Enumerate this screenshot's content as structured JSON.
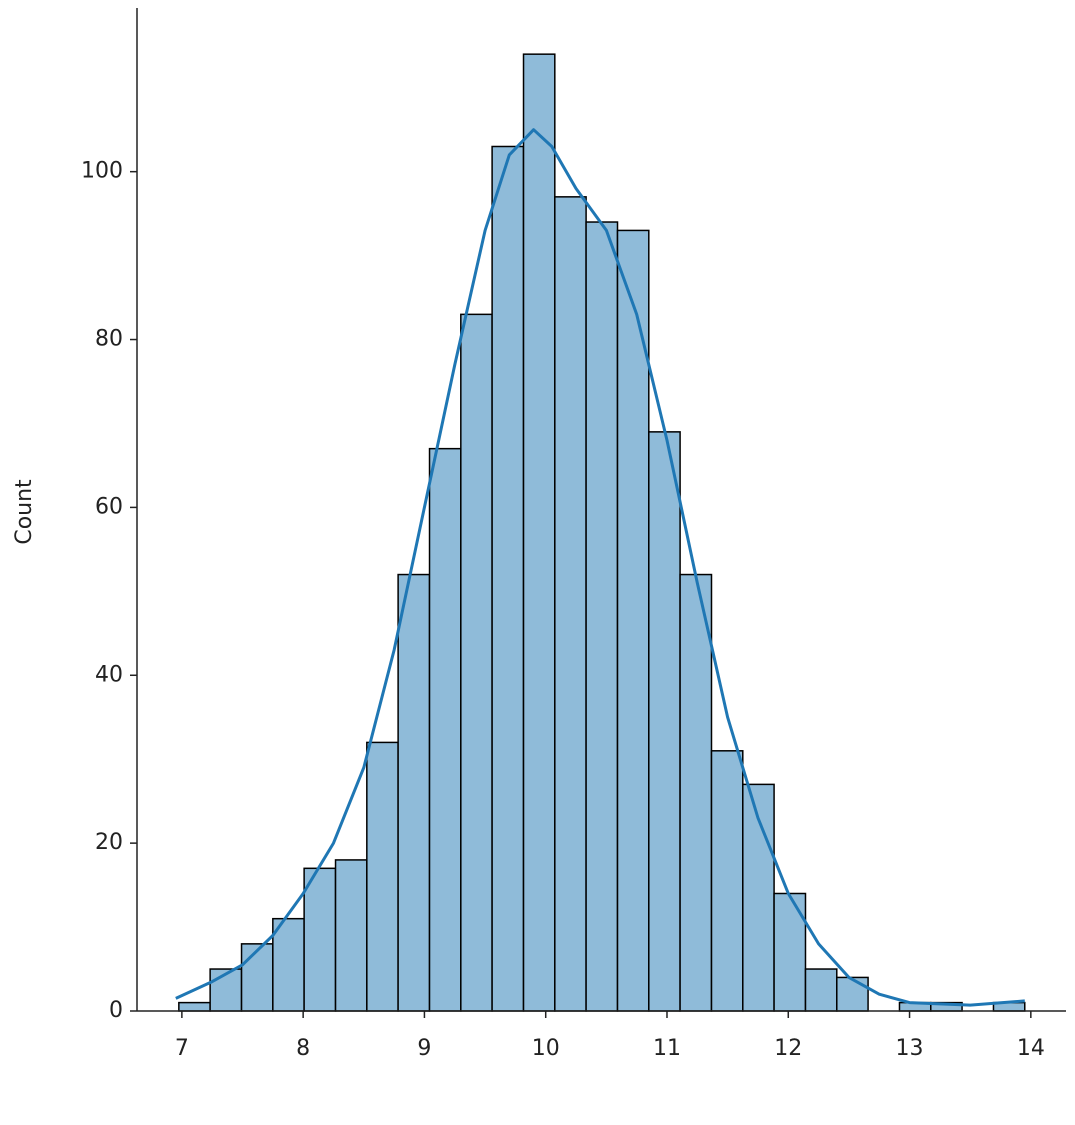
{
  "chart_data": {
    "type": "histogram",
    "ylabel": "Count",
    "bins": [
      6.975,
      7.233,
      7.492,
      7.75,
      8.008,
      8.267,
      8.525,
      8.783,
      9.042,
      9.3,
      9.558,
      9.817,
      10.075,
      10.333,
      10.592,
      10.85,
      11.108,
      11.367,
      11.625,
      11.883,
      12.142,
      12.4,
      12.658,
      12.917,
      13.175,
      13.433,
      13.692,
      13.95
    ],
    "values": [
      1,
      5,
      8,
      11,
      17,
      18,
      32,
      52,
      67,
      83,
      103,
      114,
      97,
      94,
      93,
      69,
      52,
      31,
      27,
      14,
      5,
      4,
      0,
      1,
      1,
      0,
      1
    ],
    "color": "#8fbbd9",
    "edgecolor": "#000000",
    "kde": {
      "color": "#1f77b4",
      "x": [
        6.95,
        7.25,
        7.5,
        7.75,
        8.0,
        8.25,
        8.5,
        8.75,
        9.0,
        9.25,
        9.5,
        9.7,
        9.9,
        10.05,
        10.25,
        10.5,
        10.75,
        11.0,
        11.25,
        11.5,
        11.75,
        12.0,
        12.25,
        12.5,
        12.75,
        13.0,
        13.5,
        13.95
      ],
      "values": [
        1.5,
        3.5,
        5.5,
        9,
        14,
        20,
        29,
        43,
        60,
        77,
        93,
        102,
        105,
        103,
        98,
        93,
        83,
        68,
        51,
        35,
        23,
        14,
        8,
        4,
        2,
        1,
        0.7,
        1.2
      ]
    },
    "xlim": [
      6.63,
      14.29
    ],
    "ylim": [
      0,
      119.5
    ],
    "xticks": [
      7,
      8,
      9,
      10,
      11,
      12,
      13,
      14
    ],
    "yticks": [
      0,
      20,
      40,
      60,
      80,
      100
    ]
  }
}
